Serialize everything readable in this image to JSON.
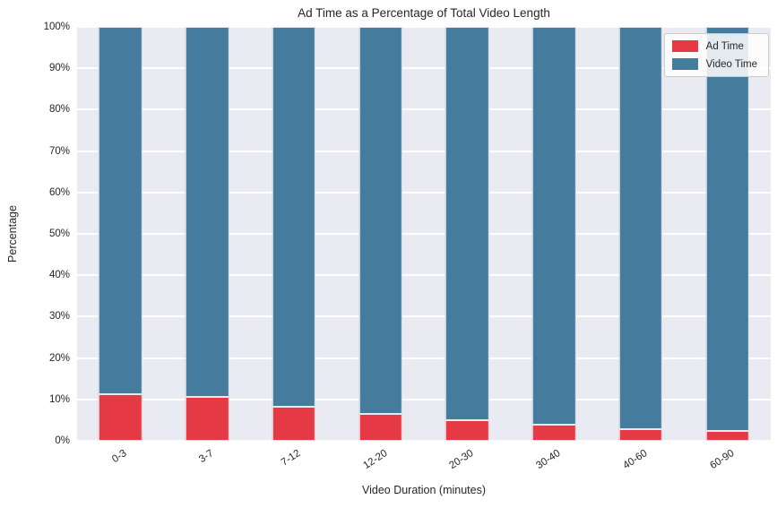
{
  "title": "Ad Time as a Percentage of Total Video Length",
  "axes": {
    "xlabel": "Video Duration (minutes)",
    "ylabel": "Percentage"
  },
  "legend": {
    "items": [
      {
        "label": "Ad Time",
        "color": "#e63946"
      },
      {
        "label": "Video Time",
        "color": "#457b9d"
      }
    ]
  },
  "colors": {
    "ad_time": "#e63946",
    "video_time": "#457b9d",
    "plot_background": "#eaeaf2",
    "gridline": "#ffffff",
    "text": "#262626",
    "legend_border": "#cccccc",
    "figure_background": "#ffffff"
  },
  "chart_data": {
    "type": "bar",
    "stacked": true,
    "title": "Ad Time as a Percentage of Total Video Length",
    "xlabel": "Video Duration (minutes)",
    "ylabel": "Percentage",
    "categories": [
      "0-3",
      "3-7",
      "7-12",
      "12-20",
      "20-30",
      "30-40",
      "40-60",
      "60-90"
    ],
    "series": [
      {
        "name": "Ad Time",
        "color": "#e63946",
        "values": [
          11.2,
          10.5,
          8.2,
          6.6,
          4.9,
          3.8,
          2.9,
          2.3
        ]
      },
      {
        "name": "Video Time",
        "color": "#457b9d",
        "values": [
          88.8,
          89.5,
          91.8,
          93.4,
          95.1,
          96.2,
          97.1,
          97.7
        ]
      }
    ],
    "ylim": [
      0,
      100
    ],
    "yticks": [
      0,
      10,
      20,
      30,
      40,
      50,
      60,
      70,
      80,
      90,
      100
    ],
    "ytick_labels": [
      "0%",
      "10%",
      "20%",
      "30%",
      "40%",
      "50%",
      "60%",
      "70%",
      "80%",
      "90%",
      "100%"
    ],
    "x_tick_rotation_deg": -33,
    "grid": "horizontal",
    "legend_position": "upper right",
    "bar_width_fraction": 0.5
  }
}
